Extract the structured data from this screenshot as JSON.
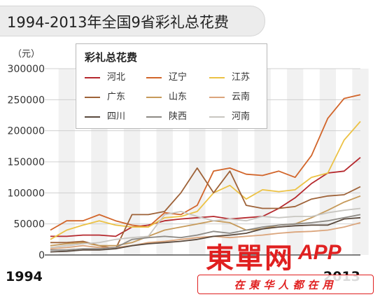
{
  "chart_data": {
    "type": "line",
    "title": "1994-2013年全国9省彩礼总花费",
    "unit_label": "（元）",
    "x_start_label": "1994",
    "x_end_label": "2013",
    "x": [
      1994,
      1995,
      1996,
      1997,
      1998,
      1999,
      2000,
      2001,
      2002,
      2003,
      2004,
      2005,
      2006,
      2007,
      2008,
      2009,
      2010,
      2011,
      2012,
      2013
    ],
    "ylim": [
      0,
      300000
    ],
    "yticks": [
      "300000",
      "250000",
      "200000",
      "150000",
      "100000",
      "50000",
      "0"
    ],
    "ytick_values": [
      300000,
      250000,
      200000,
      150000,
      100000,
      50000,
      0
    ],
    "legend_title": "彩礼总花费",
    "legend_placement": "top-left",
    "series": [
      {
        "name": "河北",
        "color": "#b5282d",
        "values": [
          30000,
          30000,
          32000,
          32000,
          30000,
          45000,
          48000,
          55000,
          58000,
          60000,
          62000,
          58000,
          60000,
          62000,
          75000,
          92000,
          115000,
          132000,
          135000,
          157000
        ]
      },
      {
        "name": "辽宁",
        "color": "#d2652a",
        "values": [
          40000,
          55000,
          55000,
          65000,
          55000,
          48000,
          45000,
          68000,
          65000,
          80000,
          135000,
          140000,
          130000,
          128000,
          135000,
          125000,
          160000,
          220000,
          252000,
          258000
        ]
      },
      {
        "name": "江苏",
        "color": "#ecc245",
        "values": [
          25000,
          40000,
          48000,
          55000,
          48000,
          45000,
          45000,
          60000,
          62000,
          70000,
          100000,
          112000,
          90000,
          105000,
          102000,
          105000,
          125000,
          132000,
          185000,
          215000
        ]
      },
      {
        "name": "广东",
        "color": "#9e6238",
        "values": [
          20000,
          20000,
          22000,
          15000,
          10000,
          65000,
          65000,
          70000,
          100000,
          140000,
          100000,
          135000,
          80000,
          75000,
          75000,
          78000,
          90000,
          95000,
          97000,
          110000
        ]
      },
      {
        "name": "山东",
        "color": "#c69a5a",
        "values": [
          15000,
          18000,
          20000,
          15000,
          15000,
          20000,
          30000,
          40000,
          45000,
          50000,
          55000,
          52000,
          40000,
          42000,
          48000,
          50000,
          60000,
          72000,
          85000,
          95000
        ]
      },
      {
        "name": "云南",
        "color": "#dba57c",
        "values": [
          10000,
          12000,
          15000,
          12000,
          12000,
          15000,
          20000,
          22000,
          25000,
          28000,
          30000,
          28000,
          30000,
          32000,
          35000,
          37000,
          38000,
          40000,
          45000,
          52000
        ]
      },
      {
        "name": "四川",
        "color": "#5a4a3e",
        "values": [
          5000,
          6000,
          8000,
          8000,
          10000,
          15000,
          18000,
          20000,
          22000,
          25000,
          30000,
          32000,
          35000,
          42000,
          45000,
          47000,
          48000,
          48000,
          58000,
          60000
        ]
      },
      {
        "name": "陕西",
        "color": "#8d8a85",
        "values": [
          8000,
          8000,
          10000,
          10000,
          12000,
          25000,
          28000,
          30000,
          28000,
          32000,
          38000,
          35000,
          40000,
          45000,
          48000,
          50000,
          52000,
          55000,
          60000,
          65000
        ]
      },
      {
        "name": "河南",
        "color": "#c8c6c1",
        "values": [
          12000,
          15000,
          18000,
          20000,
          25000,
          28000,
          30000,
          65000,
          70000,
          62000,
          55000,
          58000,
          55000,
          62000,
          60000,
          62000,
          62000,
          68000,
          72000,
          75000
        ]
      }
    ]
  },
  "watermarks": {
    "logo": "東單网",
    "app": "APP",
    "slogan": "在東华人都在用"
  }
}
